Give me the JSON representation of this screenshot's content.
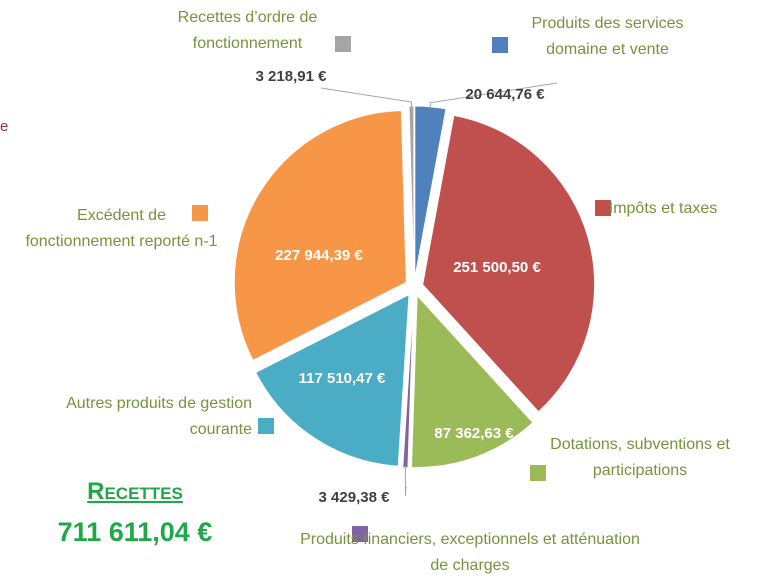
{
  "chart_data": {
    "type": "pie",
    "title": "Recettes",
    "subtitle": "711 611,04 €",
    "fragment": "e",
    "categories": [
      "Produits des services domaine et vente",
      "Impôts et taxes",
      "Dotations, subventions et participations",
      "Produits financiers, exceptionnels et atténuation de charges",
      "Autres produits de gestion courante",
      "Excédent de fonctionnement reporté n-1",
      "Recettes d’ordre de fonctionnement"
    ],
    "values": [
      20644.76,
      251500.5,
      87362.63,
      3429.38,
      117510.47,
      227944.39,
      3218.91
    ],
    "value_labels": [
      "20 644,76 €",
      "251 500,50 €",
      "87 362,63 €",
      "3 429,38 €",
      "117 510,47 €",
      "227 944,39 €",
      "3 218,91 €"
    ],
    "colors": [
      "#4f81bd",
      "#c0504d",
      "#9bbb59",
      "#8064a2",
      "#4bacc6",
      "#f79646",
      "#a5a5a5"
    ]
  }
}
